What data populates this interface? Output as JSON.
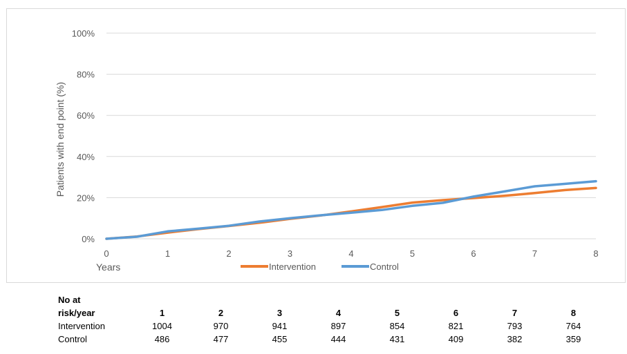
{
  "chart_data": {
    "type": "line",
    "xlabel": "Years",
    "ylabel": "Patients with end point (%)",
    "xlim": [
      0,
      8
    ],
    "ylim": [
      0,
      100
    ],
    "x_ticks": [
      "0",
      "1",
      "2",
      "3",
      "4",
      "5",
      "6",
      "7",
      "8"
    ],
    "y_ticks": [
      "0%",
      "20%",
      "40%",
      "60%",
      "80%",
      "100%"
    ],
    "grid": "horizontal",
    "legend_position": "bottom",
    "series": [
      {
        "name": "Intervention",
        "color": "#ED7D31",
        "x": [
          0,
          0.5,
          1,
          1.5,
          2,
          2.5,
          3,
          3.5,
          4,
          4.5,
          5,
          5.5,
          6,
          6.5,
          7,
          7.5,
          8
        ],
        "y": [
          0,
          1.1,
          3.0,
          4.7,
          6.2,
          7.8,
          9.7,
          11.3,
          13.3,
          15.4,
          17.6,
          18.8,
          19.8,
          20.9,
          22.2,
          23.7,
          24.7
        ]
      },
      {
        "name": "Control",
        "color": "#5B9BD5",
        "x": [
          0,
          0.5,
          1,
          1.5,
          2,
          2.5,
          3,
          3.5,
          4,
          4.5,
          5,
          5.5,
          6,
          6.5,
          7,
          7.5,
          8
        ],
        "y": [
          0,
          1.0,
          3.6,
          4.9,
          6.3,
          8.4,
          10.0,
          11.4,
          12.7,
          14.0,
          16.0,
          17.5,
          20.5,
          23.0,
          25.5,
          26.7,
          28.0
        ]
      }
    ]
  },
  "risk_table": {
    "header_label_line1": "No at",
    "header_label_line2": "risk/year",
    "years": [
      "1",
      "2",
      "3",
      "4",
      "5",
      "6",
      "7",
      "8"
    ],
    "rows": [
      {
        "label": "Intervention",
        "values": [
          "1004",
          "970",
          "941",
          "897",
          "854",
          "821",
          "793",
          "764"
        ]
      },
      {
        "label": "Control",
        "values": [
          "486",
          "477",
          "455",
          "444",
          "431",
          "409",
          "382",
          "359"
        ]
      }
    ]
  }
}
